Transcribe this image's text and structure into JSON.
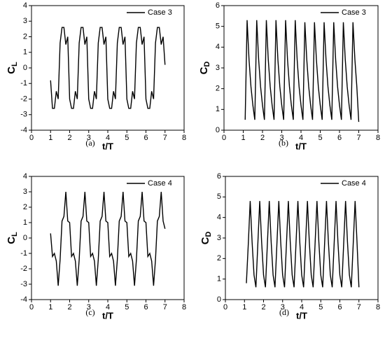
{
  "chart_data": [
    {
      "type": "line",
      "caption": "(a)",
      "xlabel": "t/T",
      "ylabel": [
        "C",
        "L"
      ],
      "legend": "upper right",
      "xlim": [
        0,
        8
      ],
      "xticks": [
        0,
        1,
        2,
        3,
        4,
        5,
        6,
        7,
        8
      ],
      "ylim": [
        -4,
        4
      ],
      "yticks": [
        -4,
        -3,
        -2,
        -1,
        0,
        1,
        2,
        3,
        4
      ],
      "x": [
        1.0,
        1.1,
        1.2,
        1.3,
        1.4,
        1.5,
        1.6,
        1.7,
        1.8,
        1.9,
        2.0,
        2.1,
        2.2,
        2.3,
        2.4,
        2.5,
        2.6,
        2.7,
        2.8,
        2.9,
        3.0,
        3.1,
        3.2,
        3.3,
        3.4,
        3.5,
        3.6,
        3.7,
        3.8,
        3.9,
        4.0,
        4.1,
        4.2,
        4.3,
        4.4,
        4.5,
        4.6,
        4.7,
        4.8,
        4.9,
        5.0,
        5.1,
        5.2,
        5.3,
        5.4,
        5.5,
        5.6,
        5.7,
        5.8,
        5.9,
        6.0,
        6.1,
        6.2,
        6.3,
        6.4,
        6.5,
        6.6,
        6.7,
        6.8,
        6.9,
        7.0
      ],
      "series": [
        {
          "name": "Case 3",
          "color": "#000000",
          "values": [
            -0.8,
            -2.6,
            -2.6,
            -1.5,
            -2.0,
            1.6,
            2.6,
            2.6,
            1.5,
            2.0,
            -2.0,
            -2.6,
            -2.6,
            -1.5,
            -2.0,
            1.6,
            2.6,
            2.6,
            1.5,
            2.0,
            -2.0,
            -2.6,
            -2.6,
            -1.5,
            -2.0,
            1.6,
            2.6,
            2.6,
            1.5,
            2.0,
            -2.0,
            -2.6,
            -2.6,
            -1.5,
            -2.0,
            1.6,
            2.6,
            2.6,
            1.5,
            2.0,
            -2.0,
            -2.6,
            -2.6,
            -1.5,
            -2.0,
            1.6,
            2.6,
            2.6,
            1.5,
            2.0,
            -2.0,
            -2.6,
            -2.6,
            -1.5,
            -2.0,
            1.6,
            2.6,
            2.6,
            1.5,
            2.0,
            0.2
          ]
        }
      ]
    },
    {
      "type": "line",
      "caption": "(b)",
      "xlabel": "t/T",
      "ylabel": [
        "C",
        "D"
      ],
      "legend": "upper right",
      "xlim": [
        0,
        8
      ],
      "xticks": [
        0,
        1,
        2,
        3,
        4,
        5,
        6,
        7,
        8
      ],
      "ylim": [
        0,
        6
      ],
      "yticks": [
        0,
        1,
        2,
        3,
        4,
        5,
        6
      ],
      "x": [
        1.1,
        1.2,
        1.3,
        1.4,
        1.5,
        1.6,
        1.7,
        1.8,
        1.9,
        2.0,
        2.1,
        2.2,
        2.3,
        2.4,
        2.5,
        2.6,
        2.7,
        2.8,
        2.9,
        3.0,
        3.1,
        3.2,
        3.3,
        3.4,
        3.5,
        3.6,
        3.7,
        3.8,
        3.9,
        4.0,
        4.1,
        4.2,
        4.3,
        4.4,
        4.5,
        4.6,
        4.7,
        4.8,
        4.9,
        5.0,
        5.1,
        5.2,
        5.3,
        5.4,
        5.5,
        5.6,
        5.7,
        5.8,
        5.9,
        6.0,
        6.1,
        6.2,
        6.3,
        6.4,
        6.5,
        6.6,
        6.7,
        6.8,
        6.9,
        7.0
      ],
      "series": [
        {
          "name": "Case 3",
          "color": "#000000",
          "values": [
            0.5,
            5.3,
            3.4,
            2.1,
            1.2,
            0.5,
            5.3,
            3.4,
            2.1,
            1.2,
            0.5,
            5.3,
            3.4,
            2.1,
            1.2,
            0.5,
            5.3,
            3.4,
            2.1,
            1.2,
            0.5,
            5.3,
            3.4,
            2.1,
            1.2,
            0.5,
            5.3,
            3.4,
            2.1,
            1.2,
            0.5,
            5.2,
            3.4,
            2.1,
            1.2,
            0.5,
            5.2,
            3.4,
            2.1,
            1.2,
            0.5,
            5.2,
            3.4,
            2.1,
            1.2,
            0.5,
            5.2,
            3.4,
            2.1,
            1.2,
            0.5,
            5.2,
            3.4,
            2.1,
            1.2,
            0.5,
            5.2,
            3.4,
            2.1,
            0.4
          ]
        }
      ]
    },
    {
      "type": "line",
      "caption": "(c)",
      "xlabel": "t/T",
      "ylabel": [
        "C",
        "L"
      ],
      "legend": "upper right",
      "xlim": [
        0,
        8
      ],
      "xticks": [
        0,
        1,
        2,
        3,
        4,
        5,
        6,
        7,
        8
      ],
      "ylim": [
        -4,
        4
      ],
      "yticks": [
        -4,
        -3,
        -2,
        -1,
        0,
        1,
        2,
        3,
        4
      ],
      "x": [
        1.0,
        1.1,
        1.2,
        1.3,
        1.4,
        1.5,
        1.6,
        1.7,
        1.8,
        1.9,
        2.0,
        2.1,
        2.2,
        2.3,
        2.4,
        2.5,
        2.6,
        2.7,
        2.8,
        2.9,
        3.0,
        3.1,
        3.2,
        3.3,
        3.4,
        3.5,
        3.6,
        3.7,
        3.8,
        3.9,
        4.0,
        4.1,
        4.2,
        4.3,
        4.4,
        4.5,
        4.6,
        4.7,
        4.8,
        4.9,
        5.0,
        5.1,
        5.2,
        5.3,
        5.4,
        5.5,
        5.6,
        5.7,
        5.8,
        5.9,
        6.0,
        6.1,
        6.2,
        6.3,
        6.4,
        6.5,
        6.6,
        6.7,
        6.8,
        6.9,
        7.0
      ],
      "series": [
        {
          "name": "Case 4",
          "color": "#000000",
          "values": [
            0.3,
            -1.2,
            -1.0,
            -1.5,
            -3.1,
            -1.4,
            1.1,
            1.4,
            3.0,
            1.1,
            1.0,
            -1.2,
            -1.0,
            -1.5,
            -3.1,
            -1.4,
            1.1,
            1.4,
            3.0,
            1.1,
            1.0,
            -1.2,
            -1.0,
            -1.5,
            -3.1,
            -1.4,
            1.1,
            1.4,
            3.0,
            1.1,
            1.0,
            -1.2,
            -1.0,
            -1.5,
            -3.1,
            -1.4,
            1.1,
            1.4,
            3.0,
            1.1,
            1.0,
            -1.2,
            -1.0,
            -1.5,
            -3.1,
            -1.4,
            1.1,
            1.4,
            3.0,
            1.1,
            1.0,
            -1.2,
            -1.0,
            -1.5,
            -3.1,
            -1.4,
            1.1,
            1.4,
            3.0,
            1.1,
            0.6
          ]
        }
      ]
    },
    {
      "type": "line",
      "caption": "(d)",
      "xlabel": "t/T",
      "ylabel": [
        "C",
        "D"
      ],
      "legend": "upper right",
      "xlim": [
        0,
        8
      ],
      "xticks": [
        0,
        1,
        2,
        3,
        4,
        5,
        6,
        7,
        8
      ],
      "ylim": [
        0,
        6
      ],
      "yticks": [
        0,
        1,
        2,
        3,
        4,
        5,
        6
      ],
      "x": [
        1.1,
        1.2,
        1.3,
        1.4,
        1.5,
        1.6,
        1.7,
        1.8,
        1.9,
        2.0,
        2.1,
        2.2,
        2.3,
        2.4,
        2.5,
        2.6,
        2.7,
        2.8,
        2.9,
        3.0,
        3.1,
        3.2,
        3.3,
        3.4,
        3.5,
        3.6,
        3.7,
        3.8,
        3.9,
        4.0,
        4.1,
        4.2,
        4.3,
        4.4,
        4.5,
        4.6,
        4.7,
        4.8,
        4.9,
        5.0,
        5.1,
        5.2,
        5.3,
        5.4,
        5.5,
        5.6,
        5.7,
        5.8,
        5.9,
        6.0,
        6.1,
        6.2,
        6.3,
        6.4,
        6.5,
        6.6,
        6.7,
        6.8,
        6.9,
        7.0
      ],
      "series": [
        {
          "name": "Case 4",
          "color": "#000000",
          "values": [
            0.8,
            2.7,
            4.8,
            2.8,
            1.2,
            0.6,
            2.7,
            4.8,
            2.8,
            1.2,
            0.6,
            2.7,
            4.8,
            2.8,
            1.2,
            0.6,
            2.7,
            4.8,
            2.8,
            1.2,
            0.6,
            2.7,
            4.8,
            2.8,
            1.2,
            0.6,
            2.7,
            4.8,
            2.8,
            1.2,
            0.6,
            2.7,
            4.8,
            2.8,
            1.2,
            0.6,
            2.7,
            4.8,
            2.8,
            1.2,
            0.6,
            2.7,
            4.8,
            2.8,
            1.2,
            0.6,
            2.7,
            4.8,
            2.8,
            1.2,
            0.6,
            2.7,
            4.8,
            2.8,
            1.2,
            0.6,
            2.7,
            4.8,
            2.8,
            0.6
          ]
        }
      ]
    }
  ]
}
